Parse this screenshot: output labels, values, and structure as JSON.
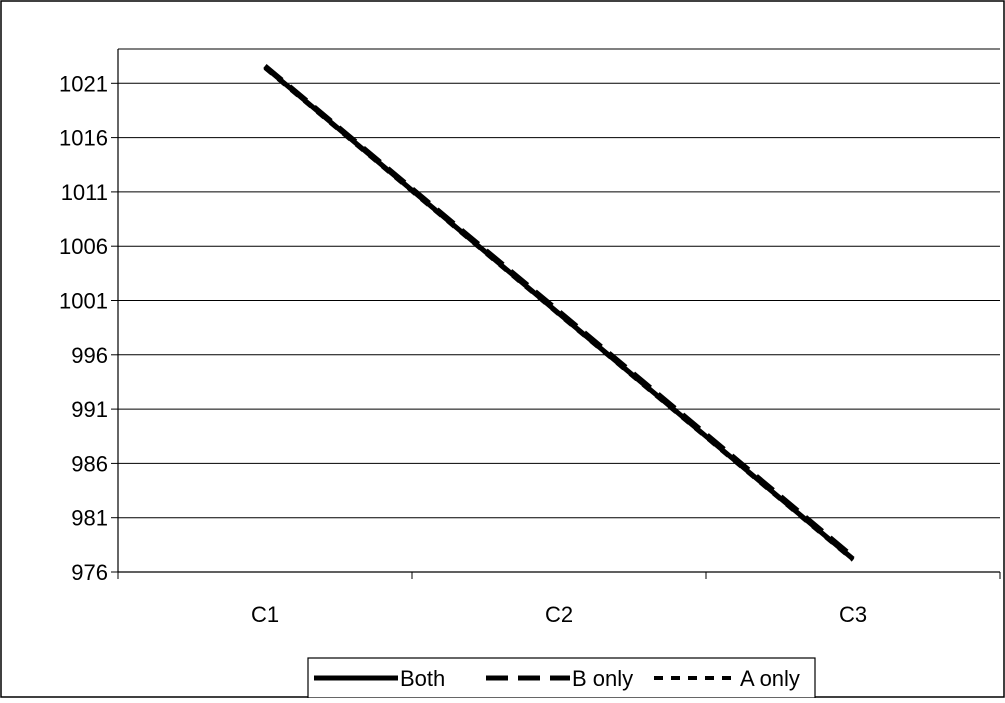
{
  "chart_data": {
    "type": "line",
    "title": "",
    "xlabel": "",
    "ylabel": "",
    "categories": [
      "C1",
      "C2",
      "C3"
    ],
    "y_ticks": [
      976,
      981,
      986,
      991,
      996,
      1001,
      1006,
      1011,
      1016,
      1021
    ],
    "ylim": [
      976,
      1023
    ],
    "grid": true,
    "legend_position": "bottom",
    "series": [
      {
        "name": "Both",
        "values": [
          1022.5,
          999.8,
          977.2
        ],
        "dash": "solid"
      },
      {
        "name": "B only",
        "values": [
          1022.6,
          1000.0,
          977.4
        ],
        "dash": "long-dash"
      },
      {
        "name": "A only",
        "values": [
          1022.4,
          999.7,
          977.1
        ],
        "dash": "short-dash"
      }
    ],
    "colors": {
      "line": "#000000",
      "grid": "#000000",
      "background": "#ffffff"
    }
  }
}
